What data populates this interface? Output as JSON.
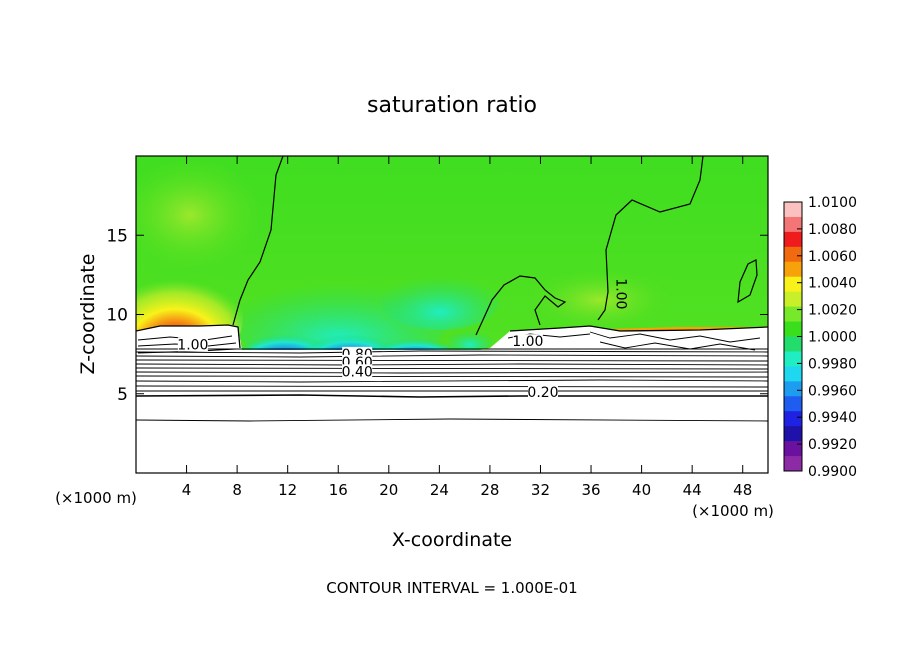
{
  "chart_data": {
    "type": "heatmap",
    "title": "saturation ratio",
    "xlabel": "X-coordinate",
    "ylabel": "Z-coordinate",
    "x_unit_left": "(×1000 m)",
    "x_unit_right": "(×1000 m)",
    "footer": "CONTOUR INTERVAL = 1.000E-01",
    "xlim": [
      0,
      50
    ],
    "ylim": [
      0,
      20
    ],
    "x_ticks": [
      4,
      8,
      12,
      16,
      20,
      24,
      28,
      32,
      36,
      40,
      44,
      48
    ],
    "y_ticks": [
      5,
      10,
      15
    ],
    "colorbar": {
      "min": 0.99,
      "max": 1.01,
      "labels": [
        "1.0100",
        "1.0080",
        "1.0060",
        "1.0040",
        "1.0020",
        "1.0000",
        "0.9980",
        "0.9960",
        "0.9940",
        "0.9920",
        "0.9900"
      ],
      "colors": [
        "#fbc0c0",
        "#f47575",
        "#ee1c1c",
        "#f26a10",
        "#f7a20a",
        "#f9f21a",
        "#c8ef2a",
        "#78e82a",
        "#39df1d",
        "#22dd6b",
        "#20eec2",
        "#1fd8f0",
        "#1e9df0",
        "#1f5cf0",
        "#1f22e3",
        "#1e12a8",
        "#6a129f",
        "#8d2aa6"
      ]
    },
    "contour_labels": [
      {
        "text": "1.00",
        "x": 4.5,
        "z": 7.8,
        "rotate": 0
      },
      {
        "text": "0.80",
        "x": 17.5,
        "z": 7.2,
        "rotate": 0
      },
      {
        "text": "0.60",
        "x": 17.5,
        "z": 6.7,
        "rotate": 0
      },
      {
        "text": "0.40",
        "x": 17.5,
        "z": 6.1,
        "rotate": 0
      },
      {
        "text": "0.20",
        "x": 32.2,
        "z": 4.8,
        "rotate": 0
      },
      {
        "text": "1.00",
        "x": 31.0,
        "z": 8.0,
        "rotate": 0
      },
      {
        "text": "1.00",
        "x": 38.0,
        "z": 11.3,
        "rotate": 90
      }
    ]
  }
}
